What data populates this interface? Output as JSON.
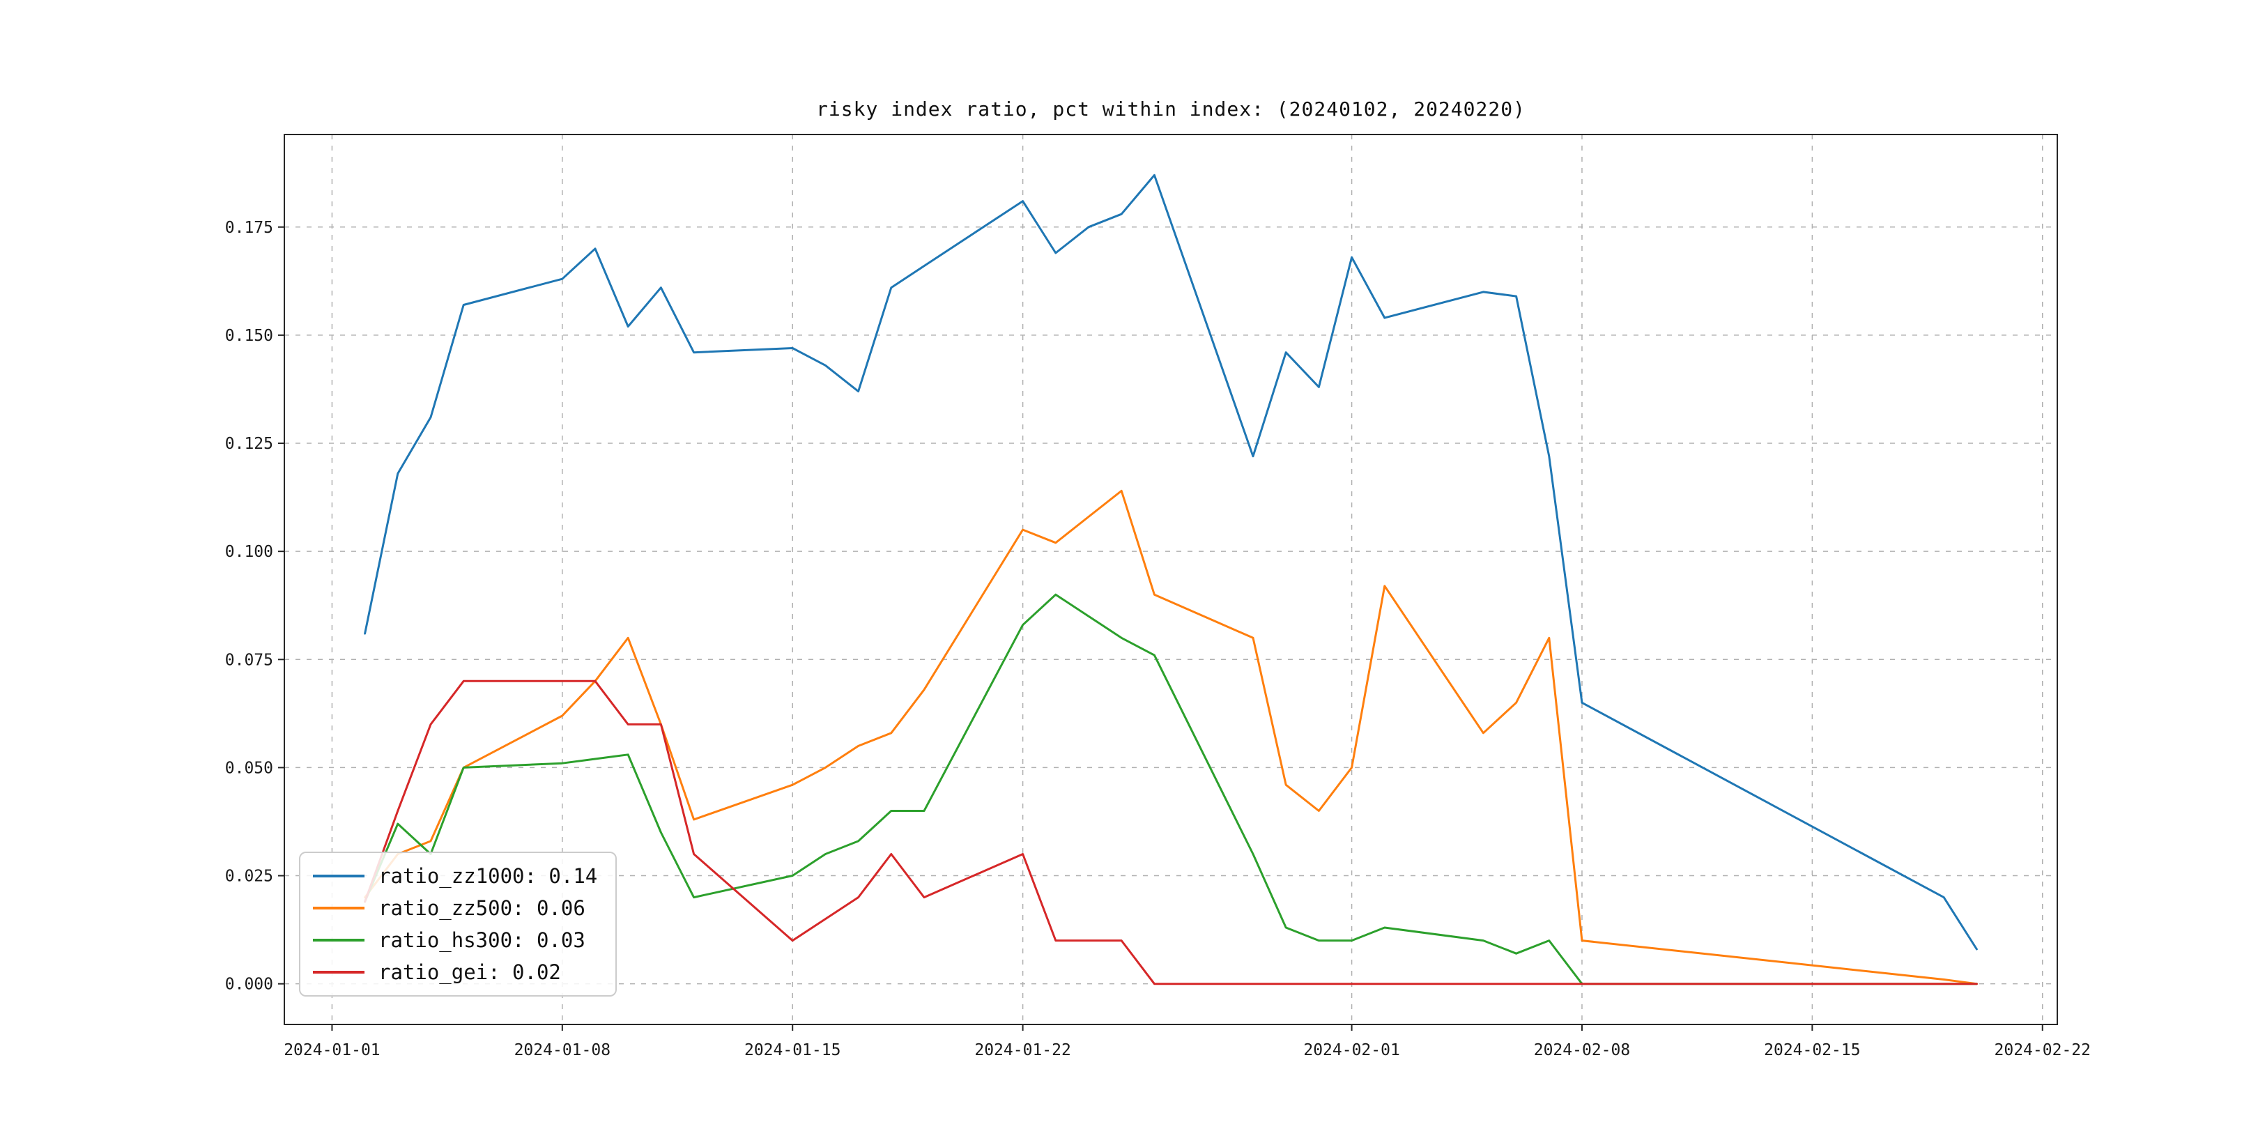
{
  "title": "risky index ratio, pct within index: (20240102, 20240220)",
  "chart_data": {
    "type": "line",
    "title": "risky index ratio, pct within index: (20240102, 20240220)",
    "x": [
      "2024-01-02",
      "2024-01-03",
      "2024-01-04",
      "2024-01-05",
      "2024-01-08",
      "2024-01-09",
      "2024-01-10",
      "2024-01-11",
      "2024-01-12",
      "2024-01-15",
      "2024-01-16",
      "2024-01-17",
      "2024-01-18",
      "2024-01-19",
      "2024-01-22",
      "2024-01-23",
      "2024-01-24",
      "2024-01-25",
      "2024-01-26",
      "2024-01-29",
      "2024-01-30",
      "2024-01-31",
      "2024-02-01",
      "2024-02-02",
      "2024-02-05",
      "2024-02-06",
      "2024-02-07",
      "2024-02-08",
      "2024-02-19",
      "2024-02-20"
    ],
    "series": [
      {
        "name": "ratio_zz1000",
        "legend_label": "ratio_zz1000: 0.14",
        "color": "#1f77b4",
        "values": [
          0.081,
          0.118,
          0.131,
          0.157,
          0.163,
          0.17,
          0.152,
          0.161,
          0.146,
          0.147,
          0.143,
          0.137,
          0.161,
          0.166,
          0.181,
          0.169,
          0.175,
          0.178,
          0.187,
          0.122,
          0.146,
          0.138,
          0.168,
          0.154,
          0.16,
          0.159,
          0.122,
          0.065,
          0.02,
          0.008
        ]
      },
      {
        "name": "ratio_zz500",
        "legend_label": "ratio_zz500: 0.06",
        "color": "#ff7f0e",
        "values": [
          0.02,
          0.03,
          0.033,
          0.05,
          0.062,
          0.07,
          0.08,
          0.06,
          0.038,
          0.046,
          0.05,
          0.055,
          0.058,
          0.068,
          0.105,
          0.102,
          0.108,
          0.114,
          0.09,
          0.08,
          0.046,
          0.04,
          0.05,
          0.092,
          0.058,
          0.065,
          0.08,
          0.01,
          0.001,
          0.0
        ]
      },
      {
        "name": "ratio_hs300",
        "legend_label": "ratio_hs300: 0.03",
        "color": "#2ca02c",
        "values": [
          0.019,
          0.037,
          0.03,
          0.05,
          0.051,
          0.052,
          0.053,
          0.035,
          0.02,
          0.025,
          0.03,
          0.033,
          0.04,
          0.04,
          0.083,
          0.09,
          0.085,
          0.08,
          0.076,
          0.03,
          0.013,
          0.01,
          0.01,
          0.013,
          0.01,
          0.007,
          0.01,
          0.0,
          0.0,
          0.0
        ]
      },
      {
        "name": "ratio_gei",
        "legend_label": "ratio_gei: 0.02",
        "color": "#d62728",
        "values": [
          0.019,
          0.04,
          0.06,
          0.07,
          0.07,
          0.07,
          0.06,
          0.06,
          0.03,
          0.01,
          0.015,
          0.02,
          0.03,
          0.02,
          0.03,
          0.01,
          0.01,
          0.01,
          0.0,
          0.0,
          0.0,
          0.0,
          0.0,
          0.0,
          0.0,
          0.0,
          0.0,
          0.0,
          0.0,
          0.0
        ]
      }
    ],
    "x_axis": {
      "epoch": "2024-01-01",
      "xlim_days": [
        -1.45,
        52.45
      ]
    },
    "x_ticks": [
      {
        "date": "2024-01-01",
        "label": "2024-01-01"
      },
      {
        "date": "2024-01-08",
        "label": "2024-01-08"
      },
      {
        "date": "2024-01-15",
        "label": "2024-01-15"
      },
      {
        "date": "2024-01-22",
        "label": "2024-01-22"
      },
      {
        "date": "2024-02-01",
        "label": "2024-02-01"
      },
      {
        "date": "2024-02-08",
        "label": "2024-02-08"
      },
      {
        "date": "2024-02-15",
        "label": "2024-02-15"
      },
      {
        "date": "2024-02-22",
        "label": "2024-02-22"
      }
    ],
    "y_ticks": [
      {
        "value": 0.0,
        "label": "0.000"
      },
      {
        "value": 0.025,
        "label": "0.025"
      },
      {
        "value": 0.05,
        "label": "0.050"
      },
      {
        "value": 0.075,
        "label": "0.075"
      },
      {
        "value": 0.1,
        "label": "0.100"
      },
      {
        "value": 0.125,
        "label": "0.125"
      },
      {
        "value": 0.15,
        "label": "0.150"
      },
      {
        "value": 0.175,
        "label": "0.175"
      }
    ],
    "ylim": [
      -0.0094,
      0.1964
    ],
    "grid": true,
    "legend_position": "lower left"
  }
}
